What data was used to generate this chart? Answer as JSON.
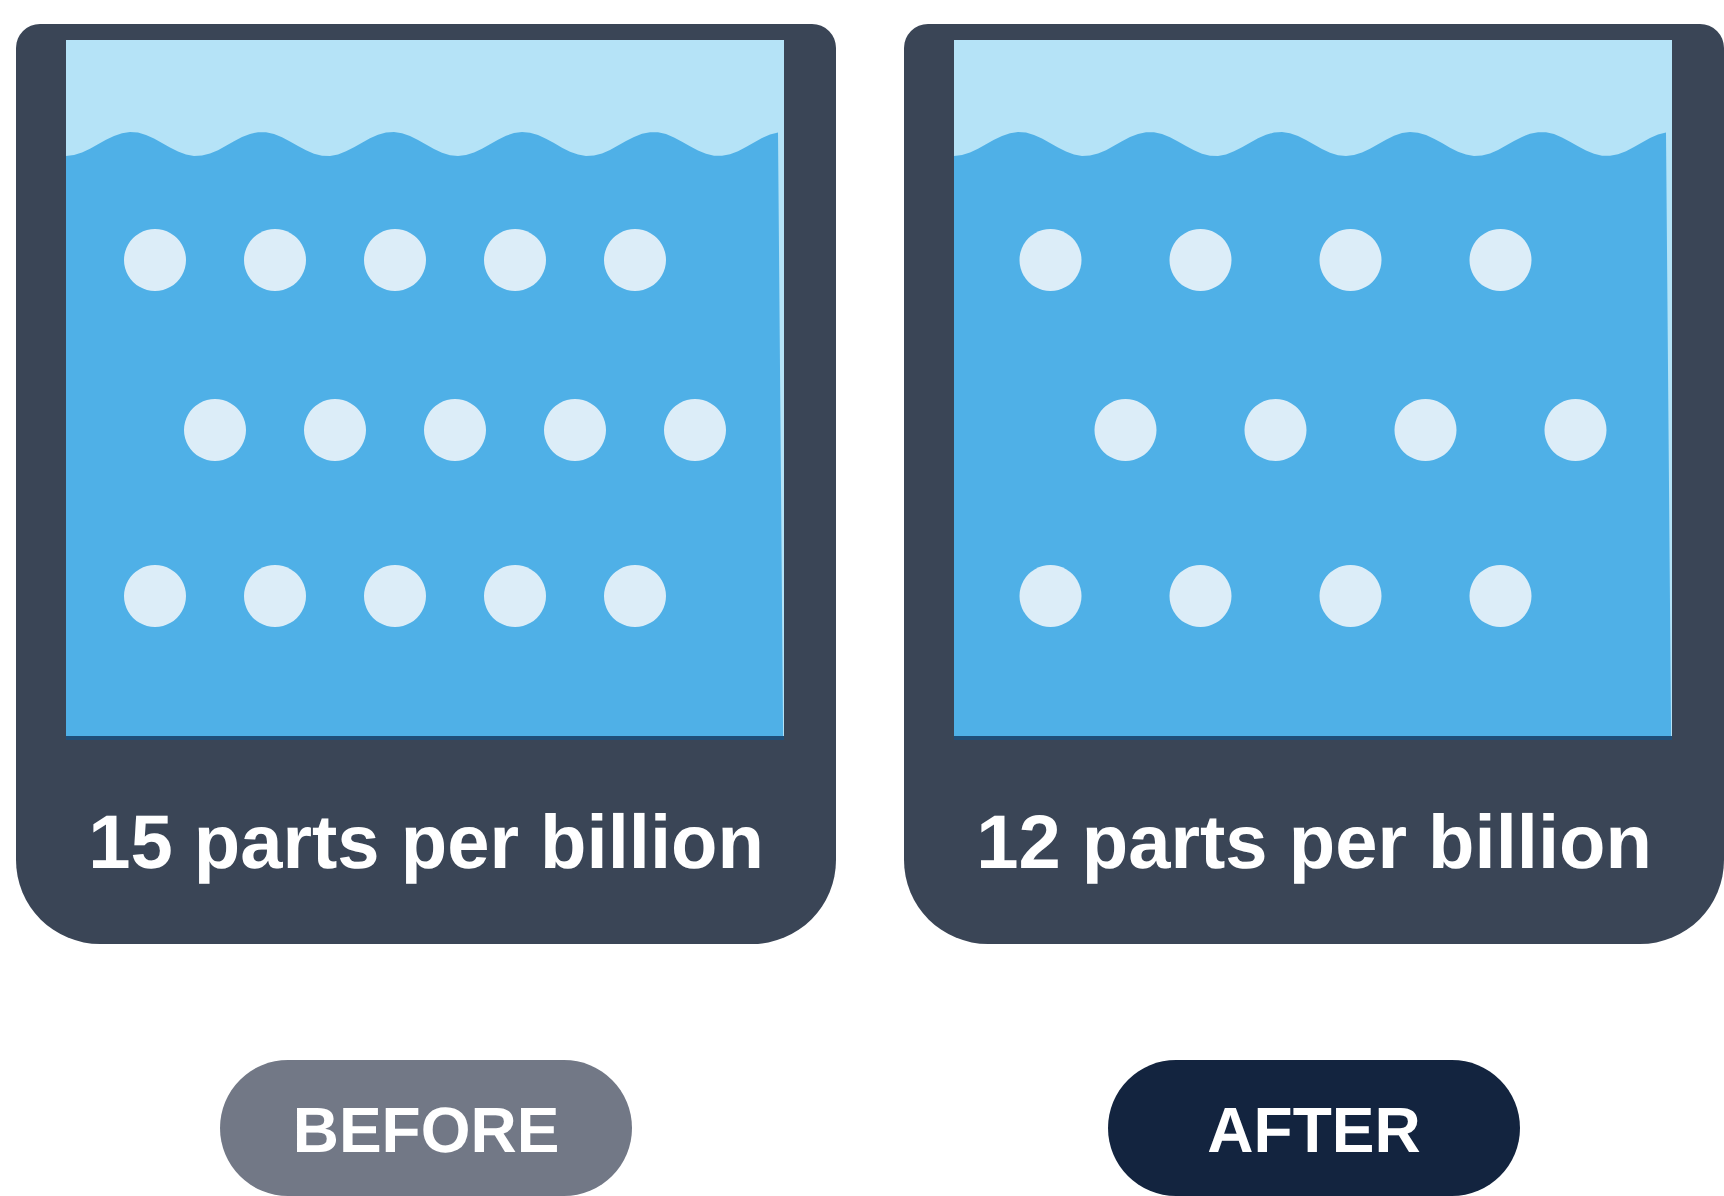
{
  "chart_data": {
    "type": "other",
    "categories": [
      "BEFORE",
      "AFTER"
    ],
    "values": [
      15,
      12
    ],
    "value_labels": [
      "15 parts per billion",
      "12 parts per billion"
    ]
  }
}
